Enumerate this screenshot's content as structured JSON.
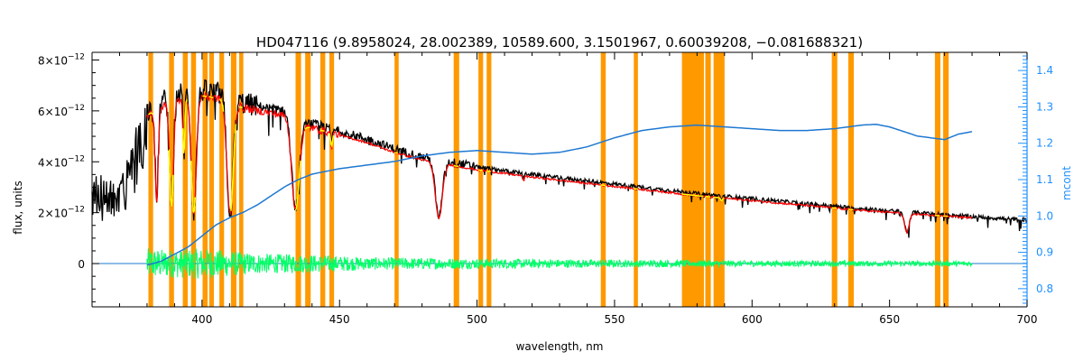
{
  "chart_data": {
    "type": "line",
    "title": "HD047116   (9.8958024, 28.002389, 10589.600, 3.1501967, 0.60039208, −0.081688321)",
    "xlabel": "wavelength, nm",
    "ylabel": "flux, units",
    "y2label": "mcont",
    "xlim": [
      360,
      700
    ],
    "ylim": [
      -1.7e-12,
      8.3e-12
    ],
    "y2lim": [
      0.75,
      1.45
    ],
    "x_ticks": [
      400,
      450,
      500,
      550,
      600,
      650,
      700
    ],
    "y_ticks": [
      {
        "value": 8e-12,
        "mant": "8×10",
        "exp": "−12"
      },
      {
        "value": 6e-12,
        "mant": "6×10",
        "exp": "−12"
      },
      {
        "value": 4e-12,
        "mant": "4×10",
        "exp": "−12"
      },
      {
        "value": 2e-12,
        "mant": "2×10",
        "exp": "−12"
      },
      {
        "value": 0,
        "mant": "0",
        "exp": ""
      }
    ],
    "y2_ticks": [
      0.8,
      0.9,
      1.0,
      1.1,
      1.2,
      1.3,
      1.4
    ],
    "colors": {
      "observed": "#000000",
      "model": "#ff0000",
      "masked_model": "#ffff00",
      "residual": "#00ff66",
      "mask": "#ff9900",
      "mcont": "#1e78d2",
      "axis2": "#1e90ff"
    },
    "masked_regions": [
      [
        380.5,
        382.2
      ],
      [
        388,
        389.8
      ],
      [
        393,
        394.8
      ],
      [
        396,
        397.8
      ],
      [
        400.2,
        402
      ],
      [
        402.6,
        404.3
      ],
      [
        406.3,
        408
      ],
      [
        410.5,
        412.5
      ],
      [
        413.5,
        415
      ],
      [
        434,
        436
      ],
      [
        437.5,
        439.5
      ],
      [
        443,
        444.8
      ],
      [
        446.3,
        448
      ],
      [
        470,
        471.5
      ],
      [
        491.5,
        493.5
      ],
      [
        500.5,
        502.2
      ],
      [
        503.5,
        505.2
      ],
      [
        545,
        546.8
      ],
      [
        557,
        558.5
      ],
      [
        574.5,
        582.5
      ],
      [
        583,
        585
      ],
      [
        586,
        590
      ],
      [
        629,
        631
      ],
      [
        635,
        637
      ],
      [
        666.5,
        668.5
      ],
      [
        669.5,
        671.5
      ]
    ],
    "observed_continuum": [
      [
        360,
        3.3e-12
      ],
      [
        364,
        3.25e-12
      ],
      [
        368,
        3.1e-12
      ],
      [
        370,
        3.8e-12
      ],
      [
        372,
        3.7e-12
      ],
      [
        374,
        4.8e-12
      ],
      [
        376,
        5.2e-12
      ],
      [
        378,
        5.6e-12
      ],
      [
        380,
        6e-12
      ],
      [
        384,
        6.3e-12
      ],
      [
        390,
        6.6e-12
      ],
      [
        395,
        6.8e-12
      ],
      [
        400,
        6.8e-12
      ],
      [
        405,
        6.7e-12
      ],
      [
        410,
        6.6e-12
      ],
      [
        415,
        6.3e-12
      ],
      [
        420,
        6.2e-12
      ],
      [
        430,
        6e-12
      ],
      [
        435,
        5.6e-12
      ],
      [
        440,
        5.5e-12
      ],
      [
        450,
        5.2e-12
      ],
      [
        460,
        4.9e-12
      ],
      [
        470,
        4.5e-12
      ],
      [
        480,
        4.2e-12
      ],
      [
        490,
        4e-12
      ],
      [
        500,
        3.8e-12
      ],
      [
        520,
        3.5e-12
      ],
      [
        540,
        3.25e-12
      ],
      [
        560,
        3e-12
      ],
      [
        580,
        2.75e-12
      ],
      [
        600,
        2.55e-12
      ],
      [
        620,
        2.35e-12
      ],
      [
        640,
        2.15e-12
      ],
      [
        660,
        2e-12
      ],
      [
        680,
        1.85e-12
      ],
      [
        700,
        1.7e-12
      ]
    ],
    "model_range": [
      380,
      680
    ],
    "absorption_lines": [
      {
        "x": 383.5,
        "depth": 0.6,
        "width": 0.8
      },
      {
        "x": 388.9,
        "depth": 0.65,
        "width": 1.0
      },
      {
        "x": 393.4,
        "depth": 0.35,
        "width": 0.5
      },
      {
        "x": 397.0,
        "depth": 0.7,
        "width": 1.3
      },
      {
        "x": 410.2,
        "depth": 0.7,
        "width": 1.6
      },
      {
        "x": 434.0,
        "depth": 0.62,
        "width": 1.9
      },
      {
        "x": 486.1,
        "depth": 0.55,
        "width": 1.8
      },
      {
        "x": 447.1,
        "depth": 0.1,
        "width": 0.5
      },
      {
        "x": 656.3,
        "depth": 0.38,
        "width": 1.2
      },
      {
        "x": 588.9,
        "depth": 0.05,
        "width": 0.4
      },
      {
        "x": 516.9,
        "depth": 0.06,
        "width": 0.4
      }
    ],
    "mcont_curve": [
      [
        380,
        0.865
      ],
      [
        385,
        0.875
      ],
      [
        390,
        0.895
      ],
      [
        395,
        0.915
      ],
      [
        400,
        0.945
      ],
      [
        405,
        0.975
      ],
      [
        410,
        0.995
      ],
      [
        415,
        1.01
      ],
      [
        420,
        1.03
      ],
      [
        425,
        1.055
      ],
      [
        430,
        1.08
      ],
      [
        435,
        1.1
      ],
      [
        440,
        1.115
      ],
      [
        450,
        1.13
      ],
      [
        460,
        1.14
      ],
      [
        470,
        1.15
      ],
      [
        480,
        1.165
      ],
      [
        490,
        1.175
      ],
      [
        500,
        1.18
      ],
      [
        510,
        1.175
      ],
      [
        520,
        1.17
      ],
      [
        530,
        1.175
      ],
      [
        540,
        1.19
      ],
      [
        550,
        1.215
      ],
      [
        560,
        1.235
      ],
      [
        570,
        1.245
      ],
      [
        580,
        1.25
      ],
      [
        590,
        1.245
      ],
      [
        600,
        1.24
      ],
      [
        610,
        1.235
      ],
      [
        620,
        1.235
      ],
      [
        630,
        1.24
      ],
      [
        640,
        1.25
      ],
      [
        645,
        1.252
      ],
      [
        650,
        1.245
      ],
      [
        660,
        1.22
      ],
      [
        670,
        1.21
      ],
      [
        675,
        1.225
      ],
      [
        680,
        1.232
      ]
    ],
    "residual_amplitude": [
      [
        380,
        6e-13
      ],
      [
        390,
        5.5e-13
      ],
      [
        400,
        6e-13
      ],
      [
        410,
        5e-13
      ],
      [
        420,
        4e-13
      ],
      [
        440,
        3.5e-13
      ],
      [
        460,
        2.5e-13
      ],
      [
        500,
        2e-13
      ],
      [
        550,
        1.5e-13
      ],
      [
        600,
        1.2e-13
      ],
      [
        680,
        1e-13
      ]
    ],
    "grid": false,
    "legend": "none"
  }
}
